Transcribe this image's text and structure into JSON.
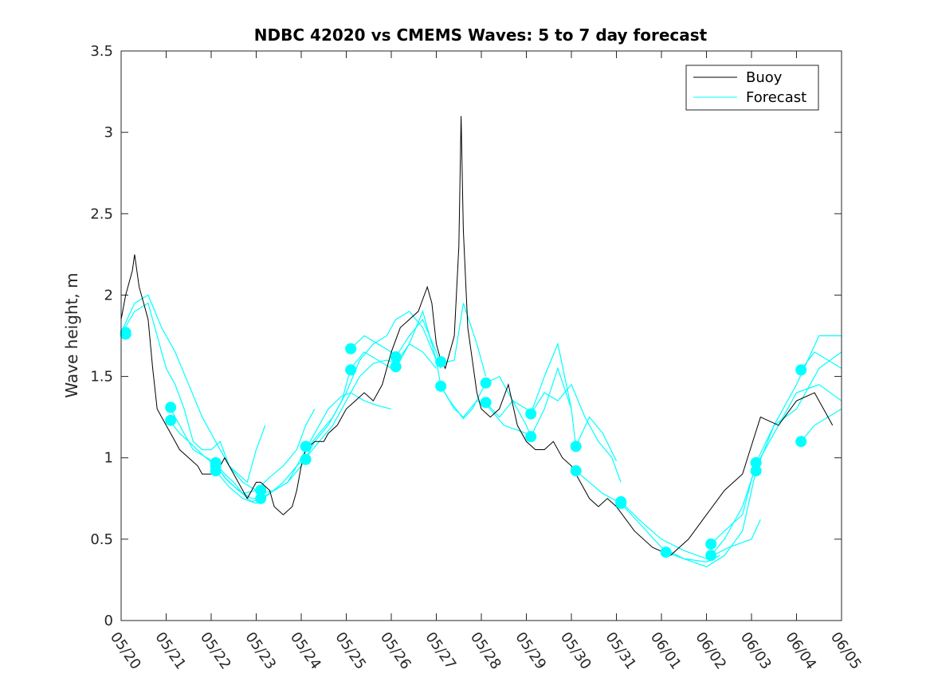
{
  "chart_data": {
    "type": "line",
    "title": "NDBC 42020 vs CMEMS Waves: 5 to 7 day forecast",
    "xlabel": "",
    "ylabel": "Wave height, m",
    "x_tick_labels": [
      "05/20",
      "05/21",
      "05/22",
      "05/23",
      "05/24",
      "05/25",
      "05/26",
      "05/27",
      "05/28",
      "05/29",
      "05/30",
      "05/31",
      "06/01",
      "06/02",
      "06/03",
      "06/04",
      "06/05"
    ],
    "y_tick_labels": [
      "0",
      "0.5",
      "1",
      "1.5",
      "2",
      "2.5",
      "3",
      "3.5"
    ],
    "xlim_days": [
      0,
      16
    ],
    "ylim": [
      0,
      3.5
    ],
    "grid": false,
    "legend_position": "top-right",
    "colors": {
      "buoy": "#000000",
      "forecast": "#00ffff",
      "axis": "#262626"
    },
    "series": [
      {
        "name": "Buoy",
        "x": [
          0.0,
          0.1,
          0.25,
          0.3,
          0.4,
          0.5,
          0.6,
          0.7,
          0.8,
          0.9,
          1.0,
          1.1,
          1.2,
          1.3,
          1.5,
          1.7,
          1.8,
          2.0,
          2.2,
          2.3,
          2.5,
          2.7,
          2.8,
          2.9,
          3.0,
          3.1,
          3.3,
          3.4,
          3.6,
          3.8,
          3.9,
          4.0,
          4.1,
          4.3,
          4.4,
          4.5,
          4.6,
          4.8,
          5.0,
          5.2,
          5.4,
          5.6,
          5.8,
          6.0,
          6.2,
          6.4,
          6.6,
          6.8,
          6.9,
          7.0,
          7.1,
          7.2,
          7.3,
          7.4,
          7.5,
          7.55,
          7.6,
          7.7,
          7.8,
          7.9,
          8.0,
          8.2,
          8.4,
          8.6,
          8.8,
          9.0,
          9.2,
          9.4,
          9.6,
          9.8,
          10.0,
          10.2,
          10.4,
          10.6,
          10.8,
          11.0,
          11.4,
          11.8,
          12.2,
          12.6,
          13.0,
          13.4,
          13.8,
          14.2,
          14.6,
          15.0,
          15.4,
          15.6,
          15.8
        ],
        "values": [
          1.85,
          2.0,
          2.15,
          2.25,
          2.05,
          1.95,
          1.85,
          1.55,
          1.3,
          1.25,
          1.2,
          1.15,
          1.1,
          1.05,
          1.0,
          0.95,
          0.9,
          0.9,
          0.95,
          1.0,
          0.9,
          0.8,
          0.75,
          0.8,
          0.85,
          0.85,
          0.8,
          0.7,
          0.65,
          0.7,
          0.8,
          0.95,
          1.05,
          1.1,
          1.1,
          1.1,
          1.15,
          1.2,
          1.3,
          1.35,
          1.4,
          1.35,
          1.45,
          1.65,
          1.8,
          1.85,
          1.9,
          2.05,
          1.95,
          1.7,
          1.6,
          1.55,
          1.65,
          1.75,
          2.3,
          3.1,
          2.4,
          1.8,
          1.6,
          1.4,
          1.3,
          1.25,
          1.3,
          1.45,
          1.2,
          1.1,
          1.05,
          1.05,
          1.1,
          1.0,
          0.95,
          0.85,
          0.75,
          0.7,
          0.75,
          0.7,
          0.55,
          0.45,
          0.4,
          0.5,
          0.65,
          0.8,
          0.9,
          1.25,
          1.2,
          1.35,
          1.4,
          1.3,
          1.2
        ]
      },
      {
        "name": "Forecast",
        "lines": [
          {
            "x": [
              0.0,
              0.3,
              0.6,
              0.8,
              1.0,
              1.2,
              1.4,
              1.6,
              1.8,
              2.0,
              2.2,
              2.4,
              2.6,
              2.8,
              3.0,
              3.2
            ],
            "values": [
              1.76,
              1.9,
              1.95,
              1.75,
              1.55,
              1.45,
              1.3,
              1.1,
              1.05,
              1.05,
              1.1,
              0.95,
              0.9,
              0.85,
              1.05,
              1.2
            ]
          },
          {
            "x": [
              0.0,
              0.3,
              0.6,
              0.9,
              1.2,
              1.5,
              1.8,
              2.1,
              2.4,
              2.7,
              3.0
            ],
            "values": [
              1.77,
              1.95,
              2.0,
              1.8,
              1.65,
              1.45,
              1.25,
              1.1,
              0.95,
              0.85,
              0.8
            ]
          },
          {
            "x": [
              1.1,
              1.3,
              1.6,
              1.9,
              2.1,
              2.3,
              2.5,
              2.7,
              2.9,
              3.1
            ],
            "values": [
              1.3,
              1.2,
              1.05,
              1.0,
              0.97,
              0.9,
              0.85,
              0.78,
              0.73,
              0.75
            ]
          },
          {
            "x": [
              1.1,
              1.3,
              1.5,
              1.8,
              2.1,
              2.3,
              2.6,
              2.9,
              3.1
            ],
            "values": [
              1.22,
              1.15,
              1.1,
              1.02,
              0.95,
              0.88,
              0.8,
              0.75,
              0.75
            ]
          },
          {
            "x": [
              2.1,
              2.4,
              2.7,
              3.0,
              3.3,
              3.6,
              3.9,
              4.1,
              4.3
            ],
            "values": [
              0.95,
              0.85,
              0.78,
              0.8,
              0.88,
              0.95,
              1.05,
              1.2,
              1.3
            ]
          },
          {
            "x": [
              2.1,
              2.4,
              2.7,
              3.0,
              3.3,
              3.6,
              3.9,
              4.1
            ],
            "values": [
              0.92,
              0.82,
              0.75,
              0.72,
              0.78,
              0.85,
              0.95,
              1.0
            ]
          },
          {
            "x": [
              3.1,
              3.4,
              3.7,
              4.0,
              4.3,
              4.6,
              4.9,
              5.1,
              5.4,
              5.7,
              6.0,
              6.2
            ],
            "values": [
              0.78,
              0.8,
              0.85,
              0.95,
              1.1,
              1.2,
              1.35,
              1.55,
              1.65,
              1.6,
              1.55,
              1.6
            ]
          },
          {
            "x": [
              3.1,
              3.4,
              3.7,
              4.0,
              4.3,
              4.6,
              4.9,
              5.1,
              5.4,
              5.7,
              6.0
            ],
            "values": [
              0.75,
              0.8,
              0.85,
              1.0,
              1.15,
              1.3,
              1.38,
              1.4,
              1.35,
              1.32,
              1.3
            ]
          },
          {
            "x": [
              4.1,
              4.4,
              4.7,
              5.0,
              5.3,
              5.6,
              5.9,
              6.1,
              6.4,
              6.7,
              7.0,
              7.1
            ],
            "values": [
              1.05,
              1.15,
              1.25,
              1.4,
              1.6,
              1.7,
              1.75,
              1.85,
              1.9,
              1.8,
              1.6,
              1.55
            ]
          },
          {
            "x": [
              4.1,
              4.4,
              4.7,
              5.0,
              5.3,
              5.6,
              5.9,
              6.1,
              6.4,
              6.7,
              7.0
            ],
            "values": [
              1.0,
              1.1,
              1.2,
              1.35,
              1.5,
              1.58,
              1.6,
              1.58,
              1.7,
              1.65,
              1.55
            ]
          },
          {
            "x": [
              5.1,
              5.4,
              5.7,
              6.0,
              6.1,
              6.4,
              6.7,
              7.0,
              7.1,
              7.4,
              7.6,
              7.9,
              8.1
            ],
            "values": [
              1.67,
              1.75,
              1.7,
              1.65,
              1.62,
              1.75,
              1.85,
              1.65,
              1.58,
              1.6,
              1.95,
              1.7,
              1.5
            ]
          },
          {
            "x": [
              6.1,
              6.4,
              6.7,
              7.0,
              7.1,
              7.4,
              7.6,
              7.9,
              8.1,
              8.5,
              9.0
            ],
            "values": [
              1.55,
              1.7,
              1.9,
              1.6,
              1.44,
              1.3,
              1.25,
              1.35,
              1.33,
              1.2,
              1.15
            ]
          },
          {
            "x": [
              7.1,
              7.3,
              7.6,
              7.8,
              8.1,
              8.4,
              8.7,
              9.0,
              9.1,
              9.4,
              9.7,
              10.0
            ],
            "values": [
              1.44,
              1.35,
              1.24,
              1.3,
              1.46,
              1.5,
              1.35,
              1.3,
              1.27,
              1.5,
              1.7,
              1.3
            ]
          },
          {
            "x": [
              8.1,
              8.4,
              8.7,
              9.0,
              9.1,
              9.4,
              9.7,
              10.0,
              10.1,
              10.4,
              10.7,
              11.0
            ],
            "values": [
              1.34,
              1.25,
              1.35,
              1.2,
              1.13,
              1.3,
              1.55,
              1.3,
              1.07,
              1.25,
              1.15,
              0.98
            ]
          },
          {
            "x": [
              9.1,
              9.4,
              9.7,
              10.0,
              10.3,
              10.6,
              10.9,
              11.1
            ],
            "values": [
              1.27,
              1.4,
              1.35,
              1.45,
              1.25,
              1.1,
              1.0,
              0.85
            ]
          },
          {
            "x": [
              10.1,
              10.4,
              10.7,
              11.1,
              11.5,
              12.0,
              12.5,
              13.0,
              13.3
            ],
            "values": [
              0.92,
              0.85,
              0.78,
              0.72,
              0.6,
              0.45,
              0.38,
              0.36,
              0.4
            ]
          },
          {
            "x": [
              11.1,
              11.5,
              12.0,
              12.5,
              13.0,
              13.5,
              14.0,
              14.2
            ],
            "values": [
              0.73,
              0.62,
              0.5,
              0.43,
              0.38,
              0.45,
              0.5,
              0.62
            ]
          },
          {
            "x": [
              12.1,
              12.5,
              13.0,
              13.4,
              13.8,
              14.1,
              14.5,
              15.0,
              15.5,
              16.0
            ],
            "values": [
              0.42,
              0.38,
              0.33,
              0.4,
              0.55,
              0.92,
              1.2,
              1.45,
              1.75,
              1.75
            ]
          },
          {
            "x": [
              13.1,
              13.4,
              13.8,
              14.1,
              14.5,
              15.0,
              15.5,
              16.0
            ],
            "values": [
              0.47,
              0.55,
              0.65,
              0.97,
              1.2,
              1.3,
              1.55,
              1.65
            ]
          },
          {
            "x": [
              13.1,
              13.4,
              13.8,
              14.1,
              14.5,
              15.0,
              15.5,
              16.0
            ],
            "values": [
              0.4,
              0.5,
              0.7,
              0.95,
              1.15,
              1.4,
              1.45,
              1.35
            ]
          },
          {
            "x": [
              15.1,
              15.4,
              15.7,
              16.0
            ],
            "values": [
              1.1,
              1.2,
              1.25,
              1.3
            ]
          },
          {
            "x": [
              15.1,
              15.4,
              15.7,
              16.0
            ],
            "values": [
              1.54,
              1.65,
              1.6,
              1.55
            ]
          }
        ],
        "markers": {
          "x": [
            0.1,
            0.1,
            1.1,
            1.1,
            2.1,
            2.1,
            2.1,
            3.1,
            3.1,
            4.1,
            4.1,
            5.1,
            5.1,
            6.1,
            6.1,
            7.1,
            7.1,
            8.1,
            8.1,
            9.1,
            9.1,
            10.1,
            10.1,
            11.1,
            11.1,
            12.1,
            13.1,
            13.1,
            14.1,
            14.1,
            15.1,
            15.1
          ],
          "values": [
            1.76,
            1.77,
            1.31,
            1.23,
            0.97,
            0.95,
            0.92,
            0.8,
            0.75,
            1.07,
            0.99,
            1.67,
            1.54,
            1.62,
            1.56,
            1.59,
            1.44,
            1.46,
            1.34,
            1.27,
            1.13,
            1.07,
            0.92,
            0.73,
            0.72,
            0.42,
            0.47,
            0.4,
            0.97,
            0.92,
            1.54,
            1.1
          ]
        }
      }
    ]
  }
}
